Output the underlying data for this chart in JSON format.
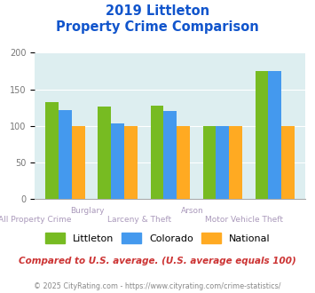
{
  "title_line1": "2019 Littleton",
  "title_line2": "Property Crime Comparison",
  "groups": [
    {
      "label": "All Property Crime",
      "littleton": 133,
      "colorado": 122,
      "national": 100
    },
    {
      "label": "Burglary",
      "littleton": 126,
      "colorado": 103,
      "national": 100
    },
    {
      "label": "Larceny & Theft",
      "littleton": 128,
      "colorado": 120,
      "national": 100
    },
    {
      "label": "Arson",
      "littleton": 100,
      "colorado": 100,
      "national": 100
    },
    {
      "label": "Motor Vehicle Theft",
      "littleton": 175,
      "colorado": 175,
      "national": 100
    }
  ],
  "colors": {
    "littleton": "#77bb22",
    "colorado": "#4499ee",
    "national": "#ffaa22"
  },
  "ylim": [
    0,
    200
  ],
  "yticks": [
    0,
    50,
    100,
    150,
    200
  ],
  "note": "Compared to U.S. average. (U.S. average equals 100)",
  "footer": "© 2025 CityRating.com - https://www.cityrating.com/crime-statistics/",
  "bg_color": "#ddeef0",
  "title_color": "#1155cc",
  "note_color": "#cc3333",
  "footer_color": "#888888",
  "label_color": "#aa99bb"
}
